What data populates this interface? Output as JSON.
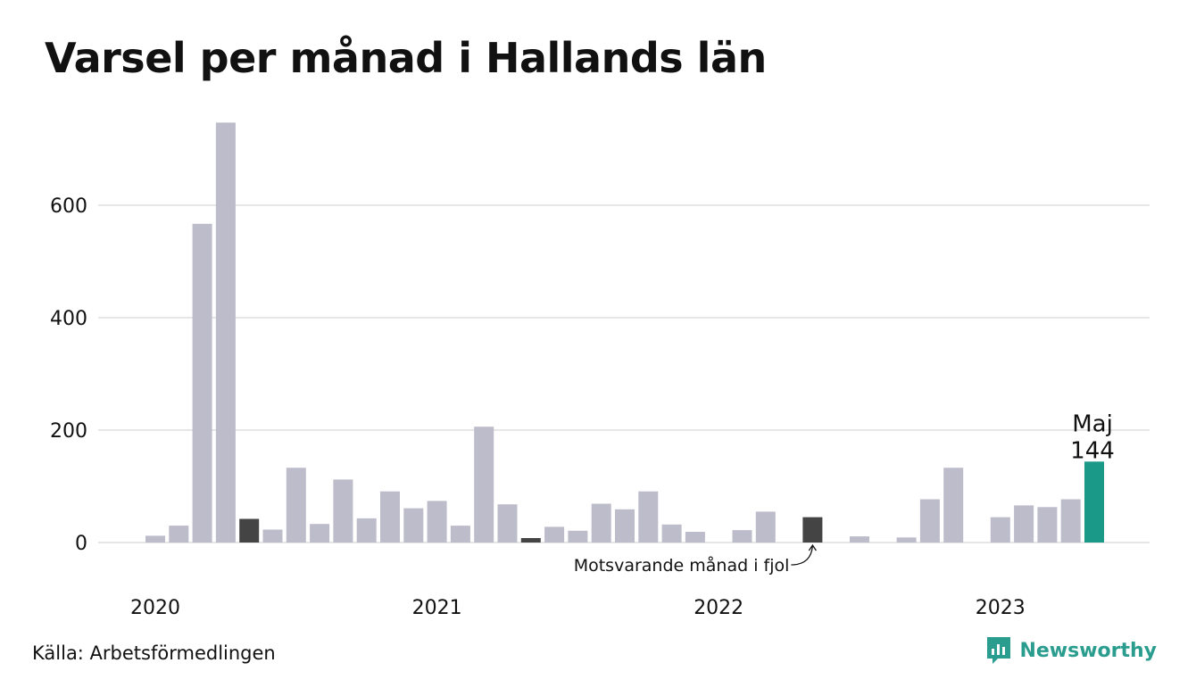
{
  "title": "Varsel per månad i Hallands län",
  "source": "Källa: Arbetsförmedlingen",
  "brand": "Newsworthy",
  "colors": {
    "bar": "#bdbccb",
    "comparison": "#444444",
    "highlight": "#1a9988",
    "grid": "#dddddd",
    "brand": "#2a9d8f"
  },
  "annotation": "Motsvarande månad i fjol",
  "highlight_label": {
    "month": "Maj",
    "value": "144"
  },
  "chart_data": {
    "type": "bar",
    "ylim": [
      0,
      780
    ],
    "yticks": [
      0,
      200,
      400,
      600
    ],
    "year_labels": [
      {
        "label": "2020",
        "month_index": 0
      },
      {
        "label": "2021",
        "month_index": 12
      },
      {
        "label": "2022",
        "month_index": 24
      },
      {
        "label": "2023",
        "month_index": 36
      }
    ],
    "months": [
      "2020-01",
      "2020-02",
      "2020-03",
      "2020-04",
      "2020-05",
      "2020-06",
      "2020-07",
      "2020-08",
      "2020-09",
      "2020-10",
      "2020-11",
      "2020-12",
      "2021-01",
      "2021-02",
      "2021-03",
      "2021-04",
      "2021-05",
      "2021-06",
      "2021-07",
      "2021-08",
      "2021-09",
      "2021-10",
      "2021-11",
      "2021-12",
      "2022-01",
      "2022-02",
      "2022-03",
      "2022-04",
      "2022-05",
      "2022-06",
      "2022-07",
      "2022-08",
      "2022-09",
      "2022-10",
      "2022-11",
      "2022-12",
      "2023-01",
      "2023-02",
      "2023-03",
      "2023-04",
      "2023-05"
    ],
    "values": [
      12,
      30,
      567,
      747,
      42,
      23,
      133,
      33,
      112,
      43,
      91,
      61,
      74,
      30,
      206,
      68,
      8,
      28,
      21,
      69,
      59,
      91,
      32,
      19,
      0,
      22,
      55,
      0,
      45,
      0,
      11,
      0,
      9,
      77,
      133,
      0,
      45,
      66,
      63,
      77,
      144
    ],
    "comparison_indices": [
      4,
      16,
      28
    ],
    "highlight_index": 40
  }
}
